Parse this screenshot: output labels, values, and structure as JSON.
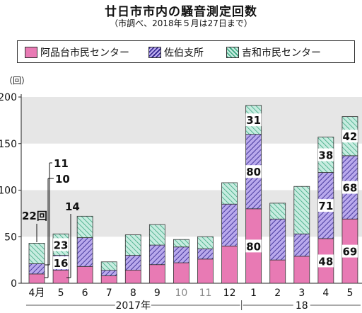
{
  "title": "廿日市市内の騒音測定回数",
  "subtitle": "（市調べ、2018年５月は27日まで）",
  "colors": {
    "series1": "#e87ab4",
    "series2_fill": "#b9a9ec",
    "series2_hatch": "#2a1d8a",
    "series3_fill": "#c7ece0",
    "series3_hatch": "#3aa880",
    "band": "#e6e6e6"
  },
  "chart_data": {
    "type": "bar",
    "stacked": true,
    "y_unit_label": "（回）",
    "ylim": [
      0,
      200
    ],
    "yticks": [
      0,
      50,
      100,
      150,
      200
    ],
    "categories": [
      "4月",
      "5",
      "6",
      "7",
      "8",
      "9",
      "10",
      "11",
      "12",
      "1",
      "2",
      "3",
      "4",
      "5"
    ],
    "year_labels": [
      {
        "text": "2017年",
        "from": 0,
        "to": 8
      },
      {
        "text": "18",
        "from": 9,
        "to": 13
      }
    ],
    "series": [
      {
        "name": "阿品台市民センター",
        "values": [
          10,
          14,
          18,
          8,
          14,
          20,
          22,
          26,
          40,
          80,
          25,
          29,
          48,
          69
        ]
      },
      {
        "name": "佐伯支所",
        "values": [
          11,
          16,
          31,
          6,
          16,
          21,
          17,
          11,
          45,
          80,
          44,
          24,
          71,
          68
        ]
      },
      {
        "name": "吉和市民センター",
        "values": [
          22,
          23,
          23,
          9,
          22,
          22,
          8,
          13,
          23,
          31,
          17,
          51,
          38,
          42
        ]
      }
    ],
    "annotations": [
      {
        "text": "22回",
        "category": 0
      },
      {
        "text": "11",
        "category": 0
      },
      {
        "text": "10",
        "category": 0
      },
      {
        "text": "23",
        "category": 1
      },
      {
        "text": "16",
        "category": 1
      },
      {
        "text": "14",
        "category": 1
      },
      {
        "text": "31",
        "category": 9
      },
      {
        "text": "80",
        "category": 9
      },
      {
        "text": "80",
        "category": 9
      },
      {
        "text": "38",
        "category": 12
      },
      {
        "text": "71",
        "category": 12
      },
      {
        "text": "48",
        "category": 12
      },
      {
        "text": "42",
        "category": 13
      },
      {
        "text": "68",
        "category": 13
      },
      {
        "text": "69",
        "category": 13
      }
    ]
  }
}
